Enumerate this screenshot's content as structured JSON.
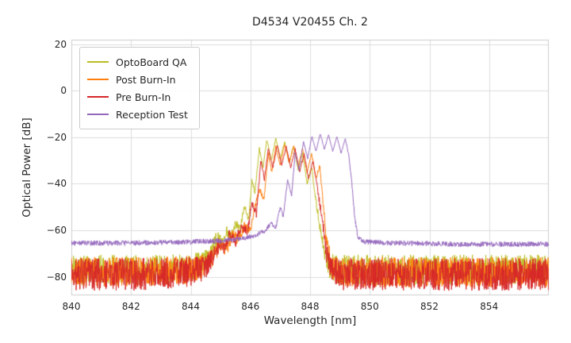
{
  "chart_data": {
    "type": "line",
    "title": "D4534 V20455 Ch. 2",
    "xlabel": "Wavelength [nm]",
    "ylabel": "Optical Power [dB]",
    "xlim": [
      840,
      856
    ],
    "ylim": [
      -88,
      22
    ],
    "xticks": [
      840,
      842,
      844,
      846,
      848,
      850,
      852,
      854
    ],
    "yticks": [
      20,
      0,
      -20,
      -40,
      -60,
      -80
    ],
    "grid": true,
    "grid_color": "#dddddd",
    "spine_color": "#cccccc",
    "legend_position": "upper left",
    "sample_step_nm": 0.01,
    "points_format": "[wavelength_nm, power_dB, noise_halfamp_dB]",
    "series": [
      {
        "name": "OptoBoard QA",
        "color": "#bcbd22",
        "seed": 101,
        "points": [
          [
            840,
            -77,
            6.5
          ],
          [
            841,
            -77,
            6.5
          ],
          [
            842,
            -77,
            6.5
          ],
          [
            843,
            -77,
            6.5
          ],
          [
            844,
            -76,
            6
          ],
          [
            844.4,
            -74,
            5
          ],
          [
            844.7,
            -68,
            4
          ],
          [
            844.9,
            -63,
            3
          ],
          [
            845.05,
            -66,
            3
          ],
          [
            845.2,
            -60,
            2.5
          ],
          [
            845.35,
            -63,
            2.5
          ],
          [
            845.5,
            -57,
            2
          ],
          [
            845.65,
            -60,
            2
          ],
          [
            845.8,
            -50,
            1.5
          ],
          [
            845.95,
            -55,
            1.5
          ],
          [
            846.05,
            -38,
            1
          ],
          [
            846.15,
            -44,
            1
          ],
          [
            846.3,
            -25,
            0.7
          ],
          [
            846.42,
            -33,
            0.7
          ],
          [
            846.55,
            -21,
            0.5
          ],
          [
            846.7,
            -30,
            0.5
          ],
          [
            846.85,
            -20.5,
            0.5
          ],
          [
            847.0,
            -29,
            0.5
          ],
          [
            847.15,
            -22,
            0.5
          ],
          [
            847.3,
            -31,
            0.5
          ],
          [
            847.45,
            -24,
            0.5
          ],
          [
            847.6,
            -34,
            0.5
          ],
          [
            847.75,
            -27,
            0.5
          ],
          [
            847.9,
            -40,
            0.7
          ],
          [
            848.05,
            -33,
            0.7
          ],
          [
            848.2,
            -48,
            1.5
          ],
          [
            848.35,
            -60,
            2.5
          ],
          [
            848.5,
            -70,
            4
          ],
          [
            848.65,
            -76,
            6
          ],
          [
            849,
            -77,
            6.5
          ],
          [
            850,
            -77,
            6.5
          ],
          [
            851,
            -77,
            6.5
          ],
          [
            852,
            -77,
            6.5
          ],
          [
            853,
            -77,
            6.5
          ],
          [
            854,
            -77,
            6.5
          ],
          [
            855,
            -77,
            6.5
          ],
          [
            856,
            -77,
            6.5
          ]
        ]
      },
      {
        "name": "Post Burn-In",
        "color": "#ff7f0e",
        "seed": 202,
        "points": [
          [
            840,
            -78,
            6.5
          ],
          [
            842,
            -78,
            6.5
          ],
          [
            844,
            -77,
            6
          ],
          [
            844.5,
            -75,
            5
          ],
          [
            844.8,
            -70,
            4
          ],
          [
            845.0,
            -66,
            3
          ],
          [
            845.2,
            -68,
            3
          ],
          [
            845.4,
            -62,
            2.5
          ],
          [
            845.6,
            -64,
            2.5
          ],
          [
            845.8,
            -58,
            2
          ],
          [
            846.0,
            -60,
            2
          ],
          [
            846.15,
            -50,
            1.5
          ],
          [
            846.3,
            -42,
            1
          ],
          [
            846.45,
            -47,
            1
          ],
          [
            846.6,
            -27,
            0.7
          ],
          [
            846.72,
            -35,
            0.7
          ],
          [
            846.85,
            -24,
            0.5
          ],
          [
            847.0,
            -32,
            0.5
          ],
          [
            847.15,
            -23,
            0.5
          ],
          [
            847.3,
            -31,
            0.5
          ],
          [
            847.45,
            -23.5,
            0.5
          ],
          [
            847.6,
            -32,
            0.5
          ],
          [
            847.75,
            -25,
            0.5
          ],
          [
            847.9,
            -35,
            0.5
          ],
          [
            848.05,
            -27,
            0.5
          ],
          [
            848.2,
            -38,
            0.7
          ],
          [
            848.32,
            -32,
            0.7
          ],
          [
            848.45,
            -50,
            1.5
          ],
          [
            848.55,
            -65,
            3
          ],
          [
            848.7,
            -74,
            5
          ],
          [
            848.85,
            -78,
            6
          ],
          [
            850,
            -78,
            6.5
          ],
          [
            852,
            -78,
            6.5
          ],
          [
            854,
            -78,
            6.5
          ],
          [
            855,
            -78,
            6.5
          ],
          [
            856,
            -78,
            6.5
          ]
        ]
      },
      {
        "name": "Pre Burn-In",
        "color": "#d62728",
        "seed": 303,
        "points": [
          [
            840,
            -79,
            7
          ],
          [
            842,
            -79,
            7
          ],
          [
            844,
            -78,
            6.5
          ],
          [
            844.5,
            -76,
            5
          ],
          [
            844.8,
            -70,
            4
          ],
          [
            845.0,
            -65,
            3
          ],
          [
            845.15,
            -68,
            3
          ],
          [
            845.3,
            -62,
            2.5
          ],
          [
            845.5,
            -65,
            2.5
          ],
          [
            845.7,
            -58,
            2
          ],
          [
            845.9,
            -61,
            2
          ],
          [
            846.05,
            -48,
            1.5
          ],
          [
            846.2,
            -53,
            1.5
          ],
          [
            846.35,
            -30,
            0.8
          ],
          [
            846.47,
            -38,
            0.8
          ],
          [
            846.6,
            -25,
            0.6
          ],
          [
            846.75,
            -33,
            0.6
          ],
          [
            846.9,
            -23.5,
            0.5
          ],
          [
            847.05,
            -32,
            0.5
          ],
          [
            847.2,
            -24,
            0.5
          ],
          [
            847.35,
            -33,
            0.5
          ],
          [
            847.5,
            -25,
            0.5
          ],
          [
            847.65,
            -35,
            0.5
          ],
          [
            847.8,
            -27,
            0.5
          ],
          [
            847.95,
            -38,
            0.6
          ],
          [
            848.1,
            -30,
            0.6
          ],
          [
            848.25,
            -42,
            1
          ],
          [
            848.4,
            -55,
            2
          ],
          [
            848.55,
            -70,
            4
          ],
          [
            848.7,
            -77,
            6
          ],
          [
            849,
            -79,
            7
          ],
          [
            851,
            -79,
            7
          ],
          [
            853,
            -79,
            7
          ],
          [
            855,
            -79,
            7
          ],
          [
            856,
            -79,
            7
          ]
        ]
      },
      {
        "name": "Reception Test",
        "color": "#9467bd",
        "seed": 404,
        "points": [
          [
            840,
            -65.5,
            1.1
          ],
          [
            842,
            -65.5,
            1.1
          ],
          [
            844,
            -65,
            1.1
          ],
          [
            845,
            -64.5,
            1.1
          ],
          [
            845.8,
            -63.5,
            1
          ],
          [
            846.2,
            -62,
            1
          ],
          [
            846.5,
            -60,
            1
          ],
          [
            846.7,
            -57,
            0.9
          ],
          [
            846.85,
            -59,
            0.9
          ],
          [
            847.0,
            -50,
            0.8
          ],
          [
            847.1,
            -54,
            0.8
          ],
          [
            847.25,
            -38,
            0.6
          ],
          [
            847.38,
            -45,
            0.6
          ],
          [
            847.5,
            -27,
            0.4
          ],
          [
            847.63,
            -34,
            0.4
          ],
          [
            847.78,
            -22,
            0.35
          ],
          [
            847.92,
            -29,
            0.35
          ],
          [
            848.06,
            -19.5,
            0.3
          ],
          [
            848.2,
            -26,
            0.3
          ],
          [
            848.34,
            -18.5,
            0.3
          ],
          [
            848.48,
            -25,
            0.3
          ],
          [
            848.62,
            -19,
            0.3
          ],
          [
            848.76,
            -26,
            0.3
          ],
          [
            848.9,
            -19.5,
            0.3
          ],
          [
            849.04,
            -27,
            0.3
          ],
          [
            849.18,
            -20.5,
            0.35
          ],
          [
            849.3,
            -28,
            0.4
          ],
          [
            849.4,
            -40,
            0.7
          ],
          [
            849.5,
            -55,
            1
          ],
          [
            849.6,
            -63,
            1.1
          ],
          [
            849.8,
            -65,
            1.1
          ],
          [
            851,
            -65.5,
            1.1
          ],
          [
            853,
            -66,
            1.1
          ],
          [
            855,
            -66,
            1.1
          ],
          [
            856,
            -66,
            1.1
          ]
        ]
      }
    ]
  }
}
